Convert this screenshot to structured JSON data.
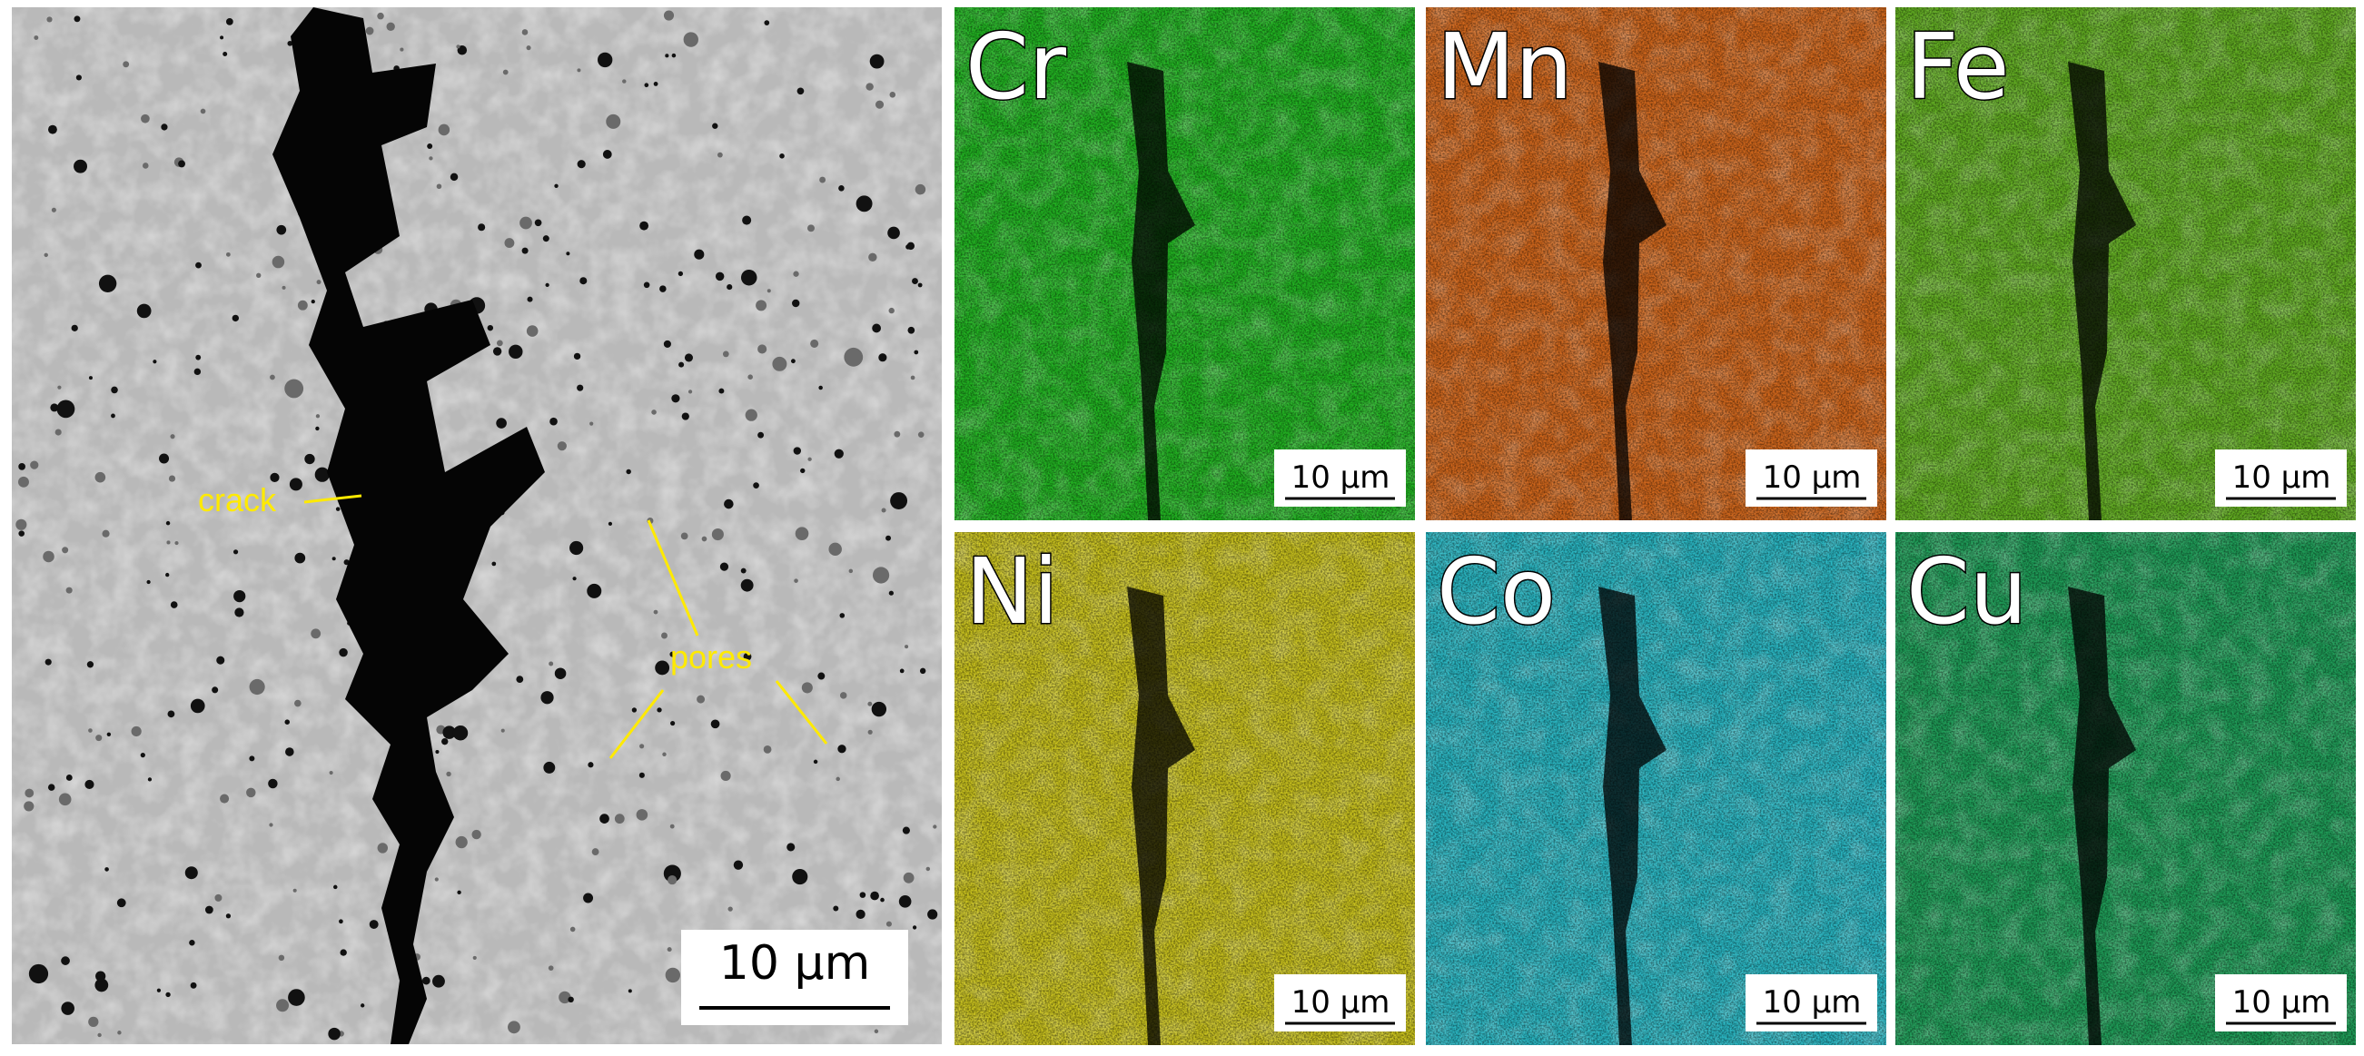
{
  "sem": {
    "annotations": {
      "crack": "crack",
      "pores": "pores"
    },
    "scale_bar": "10 µm"
  },
  "maps": [
    {
      "element": "Cr",
      "scale_bar": "10 µm"
    },
    {
      "element": "Mn",
      "scale_bar": "10 µm"
    },
    {
      "element": "Fe",
      "scale_bar": "10 µm"
    },
    {
      "element": "Ni",
      "scale_bar": "10 µm"
    },
    {
      "element": "Co",
      "scale_bar": "10 µm"
    },
    {
      "element": "Cu",
      "scale_bar": "10 µm"
    }
  ]
}
